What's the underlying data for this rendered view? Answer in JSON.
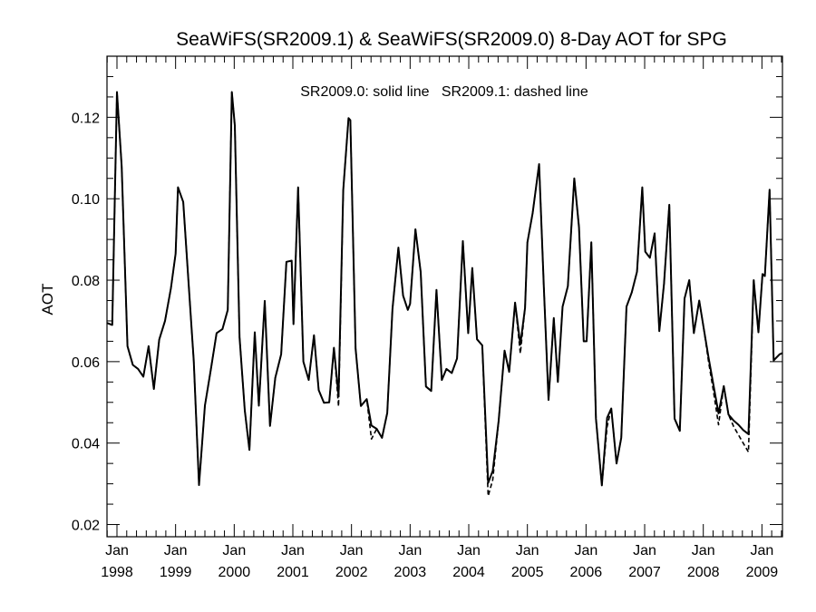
{
  "chart_data": {
    "type": "line",
    "title": "SeaWiFS(SR2009.1) & SeaWiFS(SR2009.0) 8-Day AOT for SPG",
    "annotation": "SR2009.0: solid line   SR2009.1: dashed line",
    "ylabel": "AOT",
    "xlabel": "",
    "x_unit": "years",
    "xlim": [
      1997.83,
      2009.35
    ],
    "ylim": [
      0.017,
      0.135
    ],
    "grid": false,
    "x_ticks": [
      {
        "month": "Jan",
        "year": "1998",
        "x": 1998.0
      },
      {
        "month": "Jan",
        "year": "1999",
        "x": 1999.0
      },
      {
        "month": "Jan",
        "year": "2000",
        "x": 2000.0
      },
      {
        "month": "Jan",
        "year": "2001",
        "x": 2001.0
      },
      {
        "month": "Jan",
        "year": "2002",
        "x": 2002.0
      },
      {
        "month": "Jan",
        "year": "2003",
        "x": 2003.0
      },
      {
        "month": "Jan",
        "year": "2004",
        "x": 2004.0
      },
      {
        "month": "Jan",
        "year": "2005",
        "x": 2005.0
      },
      {
        "month": "Jan",
        "year": "2006",
        "x": 2006.0
      },
      {
        "month": "Jan",
        "year": "2007",
        "x": 2007.0
      },
      {
        "month": "Jan",
        "year": "2008",
        "x": 2008.0
      },
      {
        "month": "Jan",
        "year": "2009",
        "x": 2009.0
      }
    ],
    "y_ticks": [
      "0.02",
      "0.04",
      "0.06",
      "0.08",
      "0.10",
      "0.12"
    ],
    "series": [
      {
        "name": "SR2009.0",
        "style": "solid",
        "color": "#000000",
        "points": [
          [
            1997.83,
            0.0695
          ],
          [
            1997.92,
            0.069
          ],
          [
            1998.0,
            0.1262
          ],
          [
            1998.08,
            0.108
          ],
          [
            1998.18,
            0.0638
          ],
          [
            1998.27,
            0.0592
          ],
          [
            1998.36,
            0.0582
          ],
          [
            1998.45,
            0.0563
          ],
          [
            1998.54,
            0.0638
          ],
          [
            1998.63,
            0.0533
          ],
          [
            1998.72,
            0.0654
          ],
          [
            1998.82,
            0.07
          ],
          [
            1998.92,
            0.078
          ],
          [
            1999.0,
            0.0865
          ],
          [
            1999.04,
            0.1028
          ],
          [
            1999.13,
            0.0992
          ],
          [
            1999.22,
            0.0796
          ],
          [
            1999.31,
            0.0602
          ],
          [
            1999.4,
            0.0297
          ],
          [
            1999.5,
            0.0492
          ],
          [
            1999.6,
            0.058
          ],
          [
            1999.7,
            0.067
          ],
          [
            1999.8,
            0.068
          ],
          [
            1999.89,
            0.0727
          ],
          [
            1999.96,
            0.1262
          ],
          [
            2000.01,
            0.118
          ],
          [
            2000.09,
            0.066
          ],
          [
            2000.18,
            0.048
          ],
          [
            2000.26,
            0.0383
          ],
          [
            2000.35,
            0.0672
          ],
          [
            2000.42,
            0.0492
          ],
          [
            2000.52,
            0.0749
          ],
          [
            2000.61,
            0.0442
          ],
          [
            2000.7,
            0.056
          ],
          [
            2000.8,
            0.0618
          ],
          [
            2000.89,
            0.0845
          ],
          [
            2000.98,
            0.0848
          ],
          [
            2001.01,
            0.0692
          ],
          [
            2001.09,
            0.1028
          ],
          [
            2001.18,
            0.06
          ],
          [
            2001.27,
            0.0555
          ],
          [
            2001.36,
            0.0665
          ],
          [
            2001.44,
            0.053
          ],
          [
            2001.53,
            0.0499
          ],
          [
            2001.62,
            0.05
          ],
          [
            2001.7,
            0.0634
          ],
          [
            2001.78,
            0.0515
          ],
          [
            2001.86,
            0.1022
          ],
          [
            2001.95,
            0.1198
          ],
          [
            2001.98,
            0.1193
          ],
          [
            2002.07,
            0.0632
          ],
          [
            2002.16,
            0.0491
          ],
          [
            2002.26,
            0.0508
          ],
          [
            2002.34,
            0.0443
          ],
          [
            2002.43,
            0.0435
          ],
          [
            2002.52,
            0.0413
          ],
          [
            2002.61,
            0.0474
          ],
          [
            2002.7,
            0.073
          ],
          [
            2002.8,
            0.088
          ],
          [
            2002.88,
            0.0762
          ],
          [
            2002.96,
            0.0727
          ],
          [
            2003.0,
            0.0742
          ],
          [
            2003.09,
            0.0925
          ],
          [
            2003.18,
            0.082
          ],
          [
            2003.27,
            0.0539
          ],
          [
            2003.36,
            0.0528
          ],
          [
            2003.45,
            0.0776
          ],
          [
            2003.54,
            0.0555
          ],
          [
            2003.62,
            0.0582
          ],
          [
            2003.71,
            0.0572
          ],
          [
            2003.8,
            0.0608
          ],
          [
            2003.9,
            0.0896
          ],
          [
            2003.99,
            0.067
          ],
          [
            2004.06,
            0.083
          ],
          [
            2004.14,
            0.0655
          ],
          [
            2004.23,
            0.064
          ],
          [
            2004.33,
            0.0302
          ],
          [
            2004.41,
            0.0332
          ],
          [
            2004.51,
            0.0455
          ],
          [
            2004.61,
            0.0627
          ],
          [
            2004.69,
            0.0575
          ],
          [
            2004.79,
            0.0745
          ],
          [
            2004.88,
            0.0642
          ],
          [
            2004.96,
            0.0732
          ],
          [
            2005.0,
            0.0893
          ],
          [
            2005.09,
            0.0965
          ],
          [
            2005.2,
            0.1085
          ],
          [
            2005.28,
            0.0784
          ],
          [
            2005.36,
            0.0506
          ],
          [
            2005.45,
            0.0707
          ],
          [
            2005.52,
            0.055
          ],
          [
            2005.6,
            0.0735
          ],
          [
            2005.69,
            0.0785
          ],
          [
            2005.8,
            0.105
          ],
          [
            2005.88,
            0.093
          ],
          [
            2005.96,
            0.065
          ],
          [
            2006.01,
            0.065
          ],
          [
            2006.09,
            0.0893
          ],
          [
            2006.17,
            0.046
          ],
          [
            2006.27,
            0.0296
          ],
          [
            2006.36,
            0.0462
          ],
          [
            2006.43,
            0.0485
          ],
          [
            2006.52,
            0.035
          ],
          [
            2006.6,
            0.0413
          ],
          [
            2006.69,
            0.0735
          ],
          [
            2006.78,
            0.077
          ],
          [
            2006.87,
            0.0821
          ],
          [
            2006.96,
            0.1028
          ],
          [
            2007.01,
            0.087
          ],
          [
            2007.09,
            0.0855
          ],
          [
            2007.17,
            0.0915
          ],
          [
            2007.25,
            0.0675
          ],
          [
            2007.33,
            0.0792
          ],
          [
            2007.42,
            0.0985
          ],
          [
            2007.51,
            0.046
          ],
          [
            2007.6,
            0.043
          ],
          [
            2007.68,
            0.0755
          ],
          [
            2007.76,
            0.08
          ],
          [
            2007.84,
            0.067
          ],
          [
            2007.93,
            0.075
          ],
          [
            2008.01,
            0.068
          ],
          [
            2008.09,
            0.061
          ],
          [
            2008.17,
            0.0545
          ],
          [
            2008.26,
            0.0473
          ],
          [
            2008.35,
            0.054
          ],
          [
            2008.43,
            0.047
          ],
          [
            2008.52,
            0.0455
          ],
          [
            2008.6,
            0.0445
          ],
          [
            2008.68,
            0.0432
          ],
          [
            2008.77,
            0.0422
          ],
          [
            2008.86,
            0.08
          ],
          [
            2008.94,
            0.0672
          ],
          [
            2009.01,
            0.0815
          ],
          [
            2009.05,
            0.081
          ],
          [
            2009.13,
            0.1022
          ],
          [
            2009.2,
            0.0603
          ],
          [
            2009.3,
            0.0618
          ],
          [
            2009.35,
            0.0621
          ]
        ]
      },
      {
        "name": "SR2009.1",
        "style": "dashed",
        "color": "#000000",
        "points": [
          [
            1997.83,
            0.0695
          ],
          [
            1997.92,
            0.069
          ],
          [
            1998.0,
            0.1262
          ],
          [
            1998.08,
            0.108
          ],
          [
            1998.18,
            0.0638
          ],
          [
            1998.27,
            0.0592
          ],
          [
            1998.36,
            0.0582
          ],
          [
            1998.45,
            0.0563
          ],
          [
            1998.54,
            0.0638
          ],
          [
            1998.63,
            0.0533
          ],
          [
            1998.72,
            0.0654
          ],
          [
            1998.82,
            0.07
          ],
          [
            1998.92,
            0.078
          ],
          [
            1999.0,
            0.0865
          ],
          [
            1999.04,
            0.1028
          ],
          [
            1999.13,
            0.0992
          ],
          [
            1999.22,
            0.0796
          ],
          [
            1999.31,
            0.0602
          ],
          [
            1999.4,
            0.0297
          ],
          [
            1999.5,
            0.0492
          ],
          [
            1999.6,
            0.058
          ],
          [
            1999.7,
            0.067
          ],
          [
            1999.8,
            0.068
          ],
          [
            1999.89,
            0.0727
          ],
          [
            1999.96,
            0.1262
          ],
          [
            2000.01,
            0.118
          ],
          [
            2000.09,
            0.066
          ],
          [
            2000.18,
            0.048
          ],
          [
            2000.26,
            0.0383
          ],
          [
            2000.35,
            0.0672
          ],
          [
            2000.42,
            0.0492
          ],
          [
            2000.52,
            0.0749
          ],
          [
            2000.61,
            0.0442
          ],
          [
            2000.7,
            0.056
          ],
          [
            2000.8,
            0.0618
          ],
          [
            2000.89,
            0.0845
          ],
          [
            2000.98,
            0.0848
          ],
          [
            2001.01,
            0.0692
          ],
          [
            2001.09,
            0.1028
          ],
          [
            2001.18,
            0.06
          ],
          [
            2001.27,
            0.0555
          ],
          [
            2001.36,
            0.0665
          ],
          [
            2001.44,
            0.053
          ],
          [
            2001.53,
            0.0499
          ],
          [
            2001.62,
            0.05
          ],
          [
            2001.7,
            0.0634
          ],
          [
            2001.78,
            0.049
          ],
          [
            2001.86,
            0.1022
          ],
          [
            2001.95,
            0.1198
          ],
          [
            2001.98,
            0.1193
          ],
          [
            2002.07,
            0.0632
          ],
          [
            2002.16,
            0.0491
          ],
          [
            2002.26,
            0.0508
          ],
          [
            2002.34,
            0.041
          ],
          [
            2002.43,
            0.0435
          ],
          [
            2002.52,
            0.0413
          ],
          [
            2002.61,
            0.0474
          ],
          [
            2002.7,
            0.073
          ],
          [
            2002.8,
            0.088
          ],
          [
            2002.88,
            0.0762
          ],
          [
            2002.96,
            0.0727
          ],
          [
            2003.0,
            0.0742
          ],
          [
            2003.09,
            0.0925
          ],
          [
            2003.18,
            0.082
          ],
          [
            2003.27,
            0.0539
          ],
          [
            2003.36,
            0.0528
          ],
          [
            2003.45,
            0.0776
          ],
          [
            2003.54,
            0.0555
          ],
          [
            2003.62,
            0.0582
          ],
          [
            2003.71,
            0.0572
          ],
          [
            2003.8,
            0.0608
          ],
          [
            2003.9,
            0.0896
          ],
          [
            2003.99,
            0.067
          ],
          [
            2004.06,
            0.083
          ],
          [
            2004.14,
            0.0655
          ],
          [
            2004.23,
            0.064
          ],
          [
            2004.33,
            0.027
          ],
          [
            2004.41,
            0.031
          ],
          [
            2004.51,
            0.0455
          ],
          [
            2004.61,
            0.0627
          ],
          [
            2004.69,
            0.0575
          ],
          [
            2004.79,
            0.0745
          ],
          [
            2004.88,
            0.062
          ],
          [
            2004.96,
            0.0732
          ],
          [
            2005.0,
            0.0893
          ],
          [
            2005.09,
            0.0965
          ],
          [
            2005.2,
            0.1085
          ],
          [
            2005.28,
            0.0784
          ],
          [
            2005.36,
            0.0506
          ],
          [
            2005.45,
            0.0707
          ],
          [
            2005.52,
            0.055
          ],
          [
            2005.6,
            0.0735
          ],
          [
            2005.69,
            0.0785
          ],
          [
            2005.8,
            0.105
          ],
          [
            2005.88,
            0.093
          ],
          [
            2005.96,
            0.065
          ],
          [
            2006.01,
            0.065
          ],
          [
            2006.09,
            0.0893
          ],
          [
            2006.17,
            0.046
          ],
          [
            2006.27,
            0.0296
          ],
          [
            2006.36,
            0.044
          ],
          [
            2006.43,
            0.0485
          ],
          [
            2006.52,
            0.035
          ],
          [
            2006.6,
            0.0413
          ],
          [
            2006.69,
            0.0735
          ],
          [
            2006.78,
            0.077
          ],
          [
            2006.87,
            0.0821
          ],
          [
            2006.96,
            0.1028
          ],
          [
            2007.01,
            0.087
          ],
          [
            2007.09,
            0.0855
          ],
          [
            2007.17,
            0.0915
          ],
          [
            2007.25,
            0.0675
          ],
          [
            2007.33,
            0.0792
          ],
          [
            2007.42,
            0.0985
          ],
          [
            2007.51,
            0.046
          ],
          [
            2007.6,
            0.043
          ],
          [
            2007.68,
            0.0755
          ],
          [
            2007.76,
            0.08
          ],
          [
            2007.84,
            0.067
          ],
          [
            2007.93,
            0.075
          ],
          [
            2008.01,
            0.068
          ],
          [
            2008.09,
            0.06
          ],
          [
            2008.17,
            0.053
          ],
          [
            2008.26,
            0.0445
          ],
          [
            2008.35,
            0.054
          ],
          [
            2008.43,
            0.047
          ],
          [
            2008.52,
            0.044
          ],
          [
            2008.6,
            0.042
          ],
          [
            2008.68,
            0.04
          ],
          [
            2008.77,
            0.0378
          ],
          [
            2008.86,
            0.08
          ],
          [
            2008.94,
            0.0672
          ],
          [
            2009.01,
            0.0815
          ],
          [
            2009.05,
            0.081
          ],
          [
            2009.13,
            0.1022
          ],
          [
            2009.2,
            0.0603
          ],
          [
            2009.3,
            0.0618
          ],
          [
            2009.35,
            0.0621
          ]
        ]
      }
    ]
  }
}
